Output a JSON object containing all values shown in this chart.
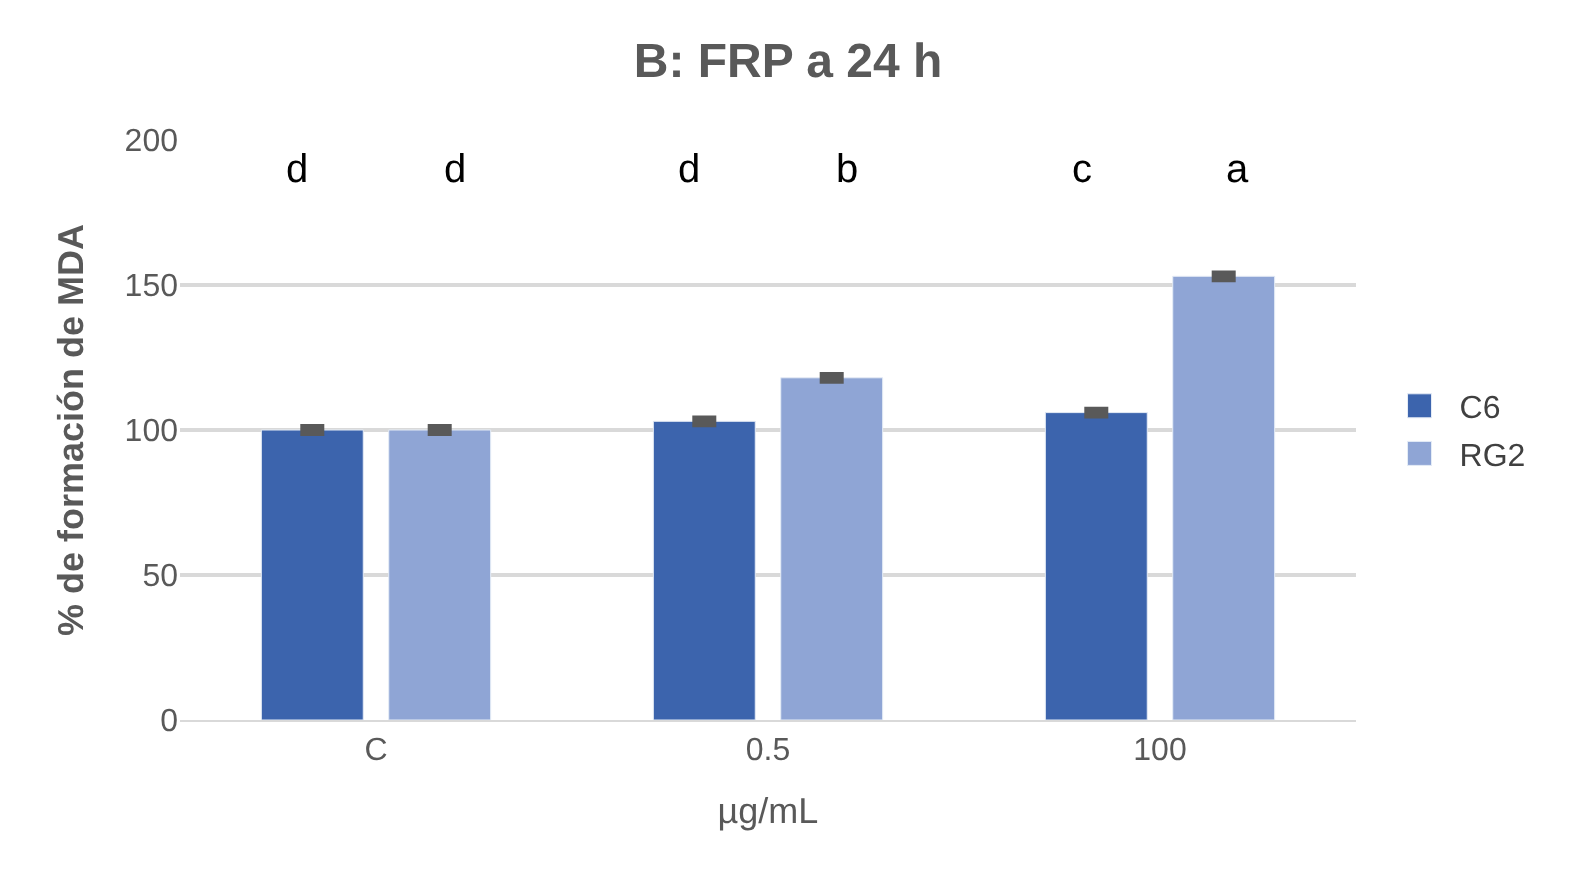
{
  "chart_data": {
    "type": "bar",
    "title": "B: FRP a 24 h",
    "xlabel": "µg/mL",
    "ylabel": "% de formación de MDA",
    "categories": [
      "C",
      "0.5",
      "100"
    ],
    "series": [
      {
        "name": "C6",
        "color": "#3c64ad",
        "values": [
          100,
          103,
          106
        ],
        "errors": [
          1,
          1,
          1
        ]
      },
      {
        "name": "RG2",
        "color": "#8fa5d5",
        "values": [
          100,
          118,
          153
        ],
        "errors": [
          1,
          1,
          1
        ]
      }
    ],
    "ylim": [
      0,
      200
    ],
    "yticks": [
      0,
      50,
      100,
      150,
      200
    ],
    "grid": "y",
    "legend": "right",
    "annotations": [
      "d",
      "d",
      "d",
      "b",
      "c",
      "a"
    ]
  }
}
